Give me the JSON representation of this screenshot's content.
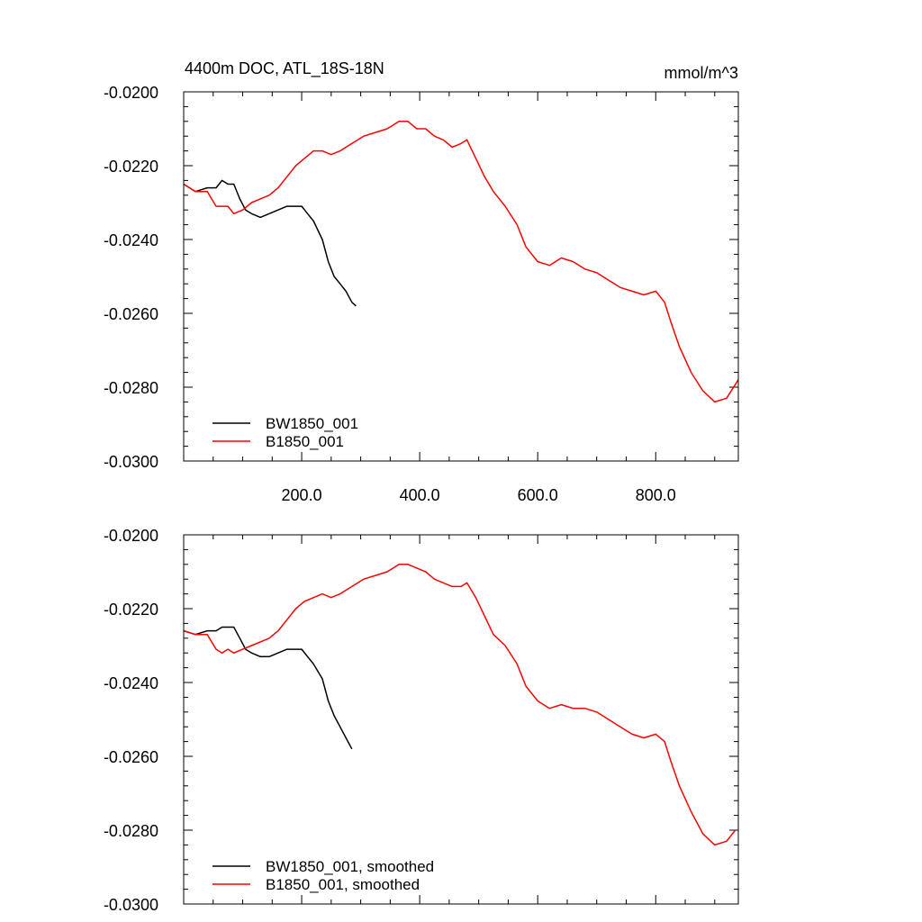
{
  "chart_data": [
    {
      "type": "line",
      "title": "4400m DOC, ATL_18S-18N",
      "units": "mmol/m^3",
      "xlim": [
        0,
        940
      ],
      "ylim": [
        -0.03,
        -0.02
      ],
      "xticks": [
        200,
        400,
        600,
        800
      ],
      "xtick_labels": [
        "200.0",
        "400.0",
        "600.0",
        "800.0"
      ],
      "yticks": [
        -0.02,
        -0.022,
        -0.024,
        -0.026,
        -0.028,
        -0.03
      ],
      "ytick_labels": [
        "-0.0200",
        "-0.0220",
        "-0.0240",
        "-0.0260",
        "-0.0280",
        "-0.0300"
      ],
      "legend": "bottom-left",
      "series": [
        {
          "name": "BW1850_001",
          "color": "#000000",
          "x": [
            0,
            20,
            40,
            55,
            65,
            75,
            85,
            95,
            105,
            115,
            130,
            145,
            160,
            175,
            190,
            200,
            210,
            220,
            235,
            245,
            255,
            265,
            275,
            285,
            292
          ],
          "y": [
            -0.0225,
            -0.0227,
            -0.0226,
            -0.0226,
            -0.0224,
            -0.0225,
            -0.0225,
            -0.0229,
            -0.0232,
            -0.0233,
            -0.0234,
            -0.0233,
            -0.0232,
            -0.0231,
            -0.0231,
            -0.0231,
            -0.0233,
            -0.0235,
            -0.024,
            -0.0246,
            -0.025,
            -0.0252,
            -0.0254,
            -0.0257,
            -0.0258
          ]
        },
        {
          "name": "B1850_001",
          "color": "#ff0000",
          "x": [
            0,
            20,
            40,
            55,
            65,
            75,
            85,
            100,
            115,
            130,
            145,
            160,
            175,
            190,
            205,
            220,
            235,
            250,
            265,
            285,
            305,
            325,
            345,
            365,
            380,
            395,
            410,
            425,
            440,
            455,
            470,
            480,
            495,
            510,
            525,
            545,
            565,
            580,
            600,
            620,
            640,
            660,
            680,
            700,
            720,
            740,
            760,
            780,
            800,
            815,
            825,
            840,
            860,
            880,
            900,
            920,
            940
          ],
          "y": [
            -0.0225,
            -0.0227,
            -0.0227,
            -0.0231,
            -0.0231,
            -0.0231,
            -0.0233,
            -0.0232,
            -0.023,
            -0.0229,
            -0.0228,
            -0.0226,
            -0.0223,
            -0.022,
            -0.0218,
            -0.0216,
            -0.0216,
            -0.0217,
            -0.0216,
            -0.0214,
            -0.0212,
            -0.0211,
            -0.021,
            -0.0208,
            -0.0208,
            -0.021,
            -0.021,
            -0.0212,
            -0.0213,
            -0.0215,
            -0.0214,
            -0.0213,
            -0.0218,
            -0.0223,
            -0.0227,
            -0.0231,
            -0.0236,
            -0.0242,
            -0.0246,
            -0.0247,
            -0.0245,
            -0.0246,
            -0.0248,
            -0.0249,
            -0.0251,
            -0.0253,
            -0.0254,
            -0.0255,
            -0.0254,
            -0.0257,
            -0.0262,
            -0.0269,
            -0.0276,
            -0.0281,
            -0.0284,
            -0.0283,
            -0.0278
          ]
        }
      ]
    },
    {
      "type": "line",
      "title": "",
      "units": "",
      "xlim": [
        0,
        940
      ],
      "ylim": [
        -0.03,
        -0.02
      ],
      "xticks": [
        200,
        400,
        600,
        800
      ],
      "xtick_labels": [],
      "yticks": [
        -0.02,
        -0.022,
        -0.024,
        -0.026,
        -0.028,
        -0.03
      ],
      "ytick_labels": [
        "-0.0200",
        "-0.0220",
        "-0.0240",
        "-0.0260",
        "-0.0280",
        "-0.0300"
      ],
      "legend": "bottom-left",
      "series": [
        {
          "name": "BW1850_001, smoothed",
          "color": "#000000",
          "x": [
            0,
            20,
            40,
            55,
            65,
            75,
            85,
            95,
            105,
            115,
            130,
            145,
            160,
            175,
            190,
            200,
            210,
            220,
            235,
            245,
            255,
            265,
            275,
            285
          ],
          "y": [
            -0.0226,
            -0.0227,
            -0.0226,
            -0.0226,
            -0.0225,
            -0.0225,
            -0.0225,
            -0.0228,
            -0.0231,
            -0.0232,
            -0.0233,
            -0.0233,
            -0.0232,
            -0.0231,
            -0.0231,
            -0.0231,
            -0.0233,
            -0.0235,
            -0.0239,
            -0.0245,
            -0.0249,
            -0.0252,
            -0.0255,
            -0.0258
          ]
        },
        {
          "name": "B1850_001, smoothed",
          "color": "#ff0000",
          "x": [
            0,
            20,
            40,
            55,
            65,
            75,
            85,
            100,
            115,
            130,
            145,
            160,
            175,
            190,
            205,
            220,
            235,
            250,
            265,
            285,
            305,
            325,
            345,
            365,
            380,
            395,
            410,
            425,
            440,
            455,
            470,
            480,
            495,
            510,
            525,
            545,
            565,
            580,
            600,
            620,
            640,
            660,
            680,
            700,
            720,
            740,
            760,
            780,
            800,
            815,
            825,
            840,
            860,
            880,
            900,
            920,
            935
          ],
          "y": [
            -0.0226,
            -0.0227,
            -0.0227,
            -0.0231,
            -0.0232,
            -0.0231,
            -0.0232,
            -0.0231,
            -0.023,
            -0.0229,
            -0.0228,
            -0.0226,
            -0.0223,
            -0.022,
            -0.0218,
            -0.0217,
            -0.0216,
            -0.0217,
            -0.0216,
            -0.0214,
            -0.0212,
            -0.0211,
            -0.021,
            -0.0208,
            -0.0208,
            -0.0209,
            -0.021,
            -0.0212,
            -0.0213,
            -0.0214,
            -0.0214,
            -0.0213,
            -0.0217,
            -0.0222,
            -0.0227,
            -0.023,
            -0.0235,
            -0.0241,
            -0.0245,
            -0.0247,
            -0.0246,
            -0.0247,
            -0.0247,
            -0.0248,
            -0.025,
            -0.0252,
            -0.0254,
            -0.0255,
            -0.0254,
            -0.0256,
            -0.0261,
            -0.0268,
            -0.0275,
            -0.0281,
            -0.0284,
            -0.0283,
            -0.028
          ]
        }
      ]
    }
  ]
}
